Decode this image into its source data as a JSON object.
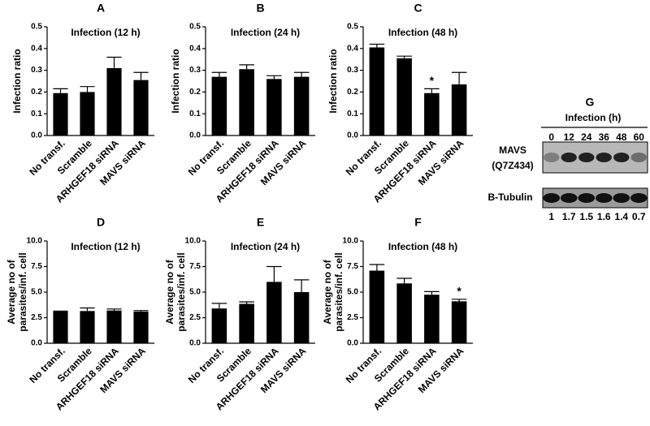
{
  "chart_data": [
    {
      "type": "bar",
      "panel": "A",
      "title": "Infection (12 h)",
      "ylabel": "Infection ratio",
      "categories": [
        "No transf.",
        "Scramble",
        "ARHGEF18 siRNA",
        "MAVS siRNA"
      ],
      "values": [
        0.195,
        0.2,
        0.31,
        0.255
      ],
      "errors": [
        0.02,
        0.025,
        0.05,
        0.035
      ],
      "color": "#000000",
      "ylim": [
        0,
        0.5
      ],
      "yticks": [
        {
          "value": 0,
          "label": "0.0"
        },
        0.1,
        0.2,
        0.3,
        0.4,
        0.5
      ]
    },
    {
      "type": "bar",
      "panel": "B",
      "title": "Infection (24 h)",
      "ylabel": "Infection ratio",
      "categories": [
        "No transf.",
        "Scramble",
        "ARHGEF18 siRNA",
        "MAVS siRNA"
      ],
      "values": [
        0.27,
        0.305,
        0.26,
        0.27
      ],
      "errors": [
        0.02,
        0.02,
        0.015,
        0.02
      ],
      "color": "#000000",
      "ylim": [
        0,
        0.5
      ],
      "yticks": [
        {
          "value": 0,
          "label": "0.0"
        },
        0.1,
        0.2,
        0.3,
        0.4,
        0.5
      ]
    },
    {
      "type": "bar",
      "panel": "C",
      "title": "Infection (48 h)",
      "ylabel": "Infection ratio",
      "categories": [
        "No transf.",
        "Scramble",
        "ARHGEF18 siRNA",
        "MAVS siRNA"
      ],
      "values": [
        0.405,
        0.355,
        0.195,
        0.235
      ],
      "errors": [
        0.015,
        0.01,
        0.02,
        0.055
      ],
      "color": "#000000",
      "ylim": [
        0,
        0.5
      ],
      "yticks": [
        {
          "value": 0,
          "label": "0.0"
        },
        0.1,
        0.2,
        0.3,
        0.4,
        0.5
      ],
      "annotations": [
        {
          "text": "*",
          "category": "ARHGEF18 siRNA"
        }
      ]
    },
    {
      "type": "bar",
      "panel": "D",
      "title": "Infection (12 h)",
      "ylabel": "Average no of parasites/inf. cell",
      "categories": [
        "No transf.",
        "Scramble",
        "ARHGEF18 siRNA",
        "MAVS siRNA"
      ],
      "values": [
        3.1,
        3.15,
        3.2,
        3.1
      ],
      "errors": [
        0.05,
        0.3,
        0.15,
        0.1
      ],
      "color": "#000000",
      "ylim": [
        0,
        10
      ],
      "yticks": [
        {
          "value": 0,
          "label": "0.0"
        },
        2.5,
        {
          "value": 5,
          "label": "5.0"
        },
        7.5,
        {
          "value": 10,
          "label": "10.0"
        }
      ]
    },
    {
      "type": "bar",
      "panel": "E",
      "title": "Infection (24 h)",
      "ylabel": "Average no of parasites/inf. cell",
      "categories": [
        "No transf.",
        "Scramble",
        "ARHGEF18 siRNA",
        "MAVS siRNA"
      ],
      "values": [
        3.4,
        3.85,
        6.0,
        5.0
      ],
      "errors": [
        0.5,
        0.2,
        1.5,
        1.2
      ],
      "color": "#000000",
      "ylim": [
        0,
        10
      ],
      "yticks": [
        {
          "value": 0,
          "label": "0.0"
        },
        2.5,
        {
          "value": 5,
          "label": "5.0"
        },
        7.5,
        {
          "value": 10,
          "label": "10.0"
        }
      ]
    },
    {
      "type": "bar",
      "panel": "F",
      "title": "Infection (48 h)",
      "ylabel": "Average no of parasites/inf. cell",
      "categories": [
        "No transf.",
        "Scramble",
        "ARHGEF18 siRNA",
        "MAVS siRNA"
      ],
      "values": [
        7.1,
        5.85,
        4.75,
        4.1
      ],
      "errors": [
        0.6,
        0.5,
        0.3,
        0.2
      ],
      "color": "#000000",
      "ylim": [
        0,
        10
      ],
      "yticks": [
        {
          "value": 0,
          "label": "0.0"
        },
        2.5,
        {
          "value": 5,
          "label": "5.0"
        },
        7.5,
        {
          "value": 10,
          "label": "10.0"
        }
      ],
      "annotations": [
        {
          "text": "*",
          "category": "MAVS siRNA"
        }
      ]
    }
  ],
  "blot": {
    "panel": "G",
    "title": "Infection (h)",
    "times": [
      0,
      12,
      24,
      36,
      48,
      60
    ],
    "rows": [
      "MAVS",
      "(Q7Z434)",
      "B-Tubulin"
    ],
    "quantification": [
      1,
      1.7,
      1.5,
      1.6,
      1.4,
      0.7
    ]
  }
}
